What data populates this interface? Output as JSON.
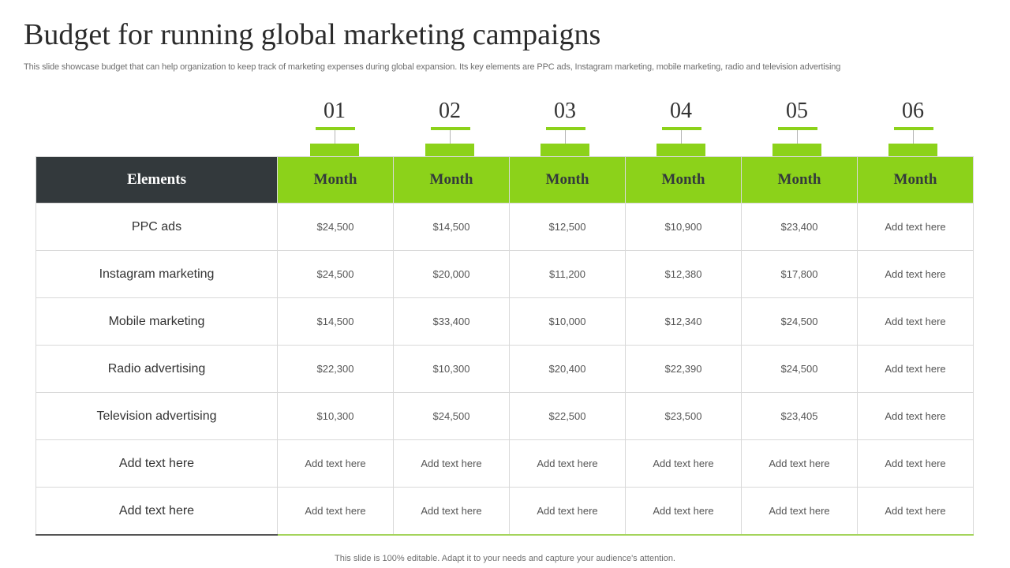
{
  "title": "Budget for running global marketing campaigns",
  "subtitle": "This slide showcase budget that can help organization to keep track of marketing expenses during global expansion. Its key elements are PPC ads, Instagram marketing, mobile marketing, radio and television advertising",
  "colors": {
    "accent": "#8cd21a",
    "dark": "#33393c"
  },
  "markers": [
    "01",
    "02",
    "03",
    "04",
    "05",
    "06"
  ],
  "table": {
    "header_first": "Elements",
    "header_months": [
      "Month",
      "Month",
      "Month",
      "Month",
      "Month",
      "Month"
    ],
    "rows": [
      {
        "label": "PPC ads",
        "values": [
          "$24,500",
          "$14,500",
          "$12,500",
          "$10,900",
          "$23,400",
          "Add text here"
        ]
      },
      {
        "label": "Instagram marketing",
        "values": [
          "$24,500",
          "$20,000",
          "$11,200",
          "$12,380",
          "$17,800",
          "Add text here"
        ]
      },
      {
        "label": "Mobile marketing",
        "values": [
          "$14,500",
          "$33,400",
          "$10,000",
          "$12,340",
          "$24,500",
          "Add text here"
        ]
      },
      {
        "label": "Radio advertising",
        "values": [
          "$22,300",
          "$10,300",
          "$20,400",
          "$22,390",
          "$24,500",
          "Add text here"
        ]
      },
      {
        "label": "Television advertising",
        "values": [
          "$10,300",
          "$24,500",
          "$22,500",
          "$23,500",
          "$23,405",
          "Add text here"
        ]
      },
      {
        "label": "Add text here",
        "values": [
          "Add text here",
          "Add text here",
          "Add text here",
          "Add text here",
          "Add text here",
          "Add text here"
        ]
      },
      {
        "label": "Add text here",
        "values": [
          "Add text here",
          "Add text here",
          "Add text here",
          "Add text here",
          "Add text here",
          "Add text here"
        ]
      }
    ]
  },
  "footer": "This slide is 100% editable. Adapt it to your needs and capture your audience's attention."
}
